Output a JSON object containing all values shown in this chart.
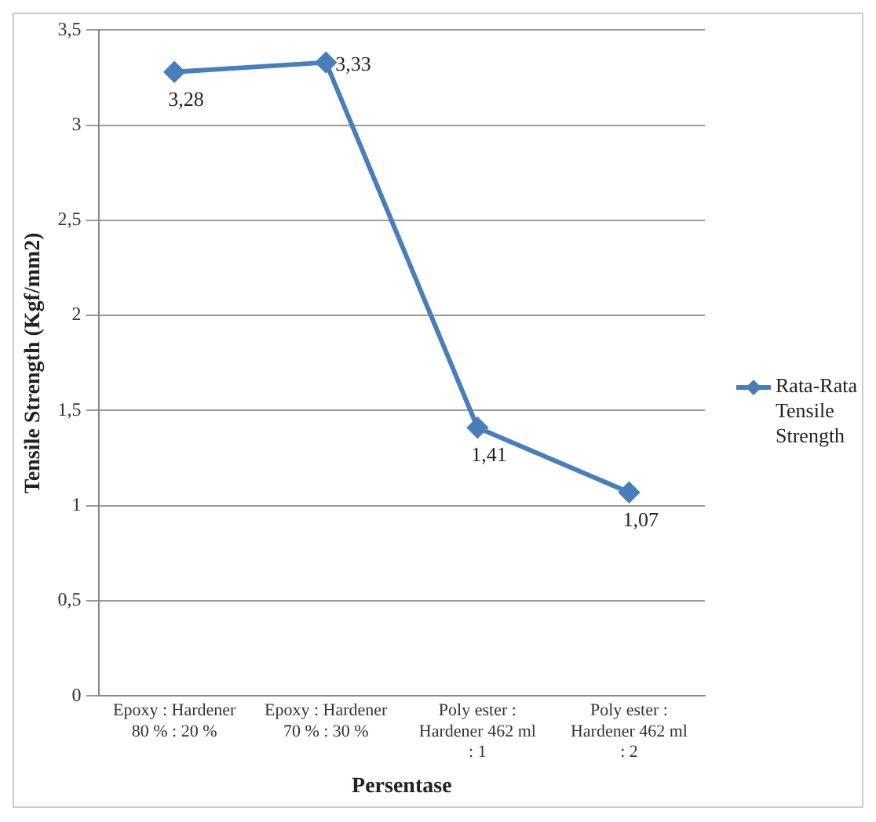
{
  "chart_data": {
    "type": "line",
    "ylabel": "Tensile Strength (Kgf/mm2)",
    "xlabel": "Persentase",
    "categories": [
      "Epoxy : Hardener 80 % : 20 %",
      "Epoxy : Hardener 70 % : 30 %",
      "Poly ester : Hardener 462 ml : 1",
      "Poly ester : Hardener 462 ml : 2"
    ],
    "series": [
      {
        "name": "Rata-Rata Tensile Strength",
        "color": "#4a7ebb",
        "values": [
          3.28,
          3.33,
          1.41,
          1.07
        ],
        "value_labels": [
          "3,28",
          "3,33",
          "1,41",
          "1,07"
        ]
      }
    ],
    "ylim": [
      0,
      3.5
    ],
    "yticks": [
      0,
      {
        "value": 0.5,
        "label": "0,5"
      },
      1,
      {
        "value": 1.5,
        "label": "1,5"
      },
      2,
      {
        "value": 2.5,
        "label": "2,5"
      },
      3,
      {
        "value": 3.5,
        "label": "3,5"
      }
    ],
    "grid": "y",
    "legend": "right",
    "marker": "diamond",
    "line_style": "solid"
  }
}
